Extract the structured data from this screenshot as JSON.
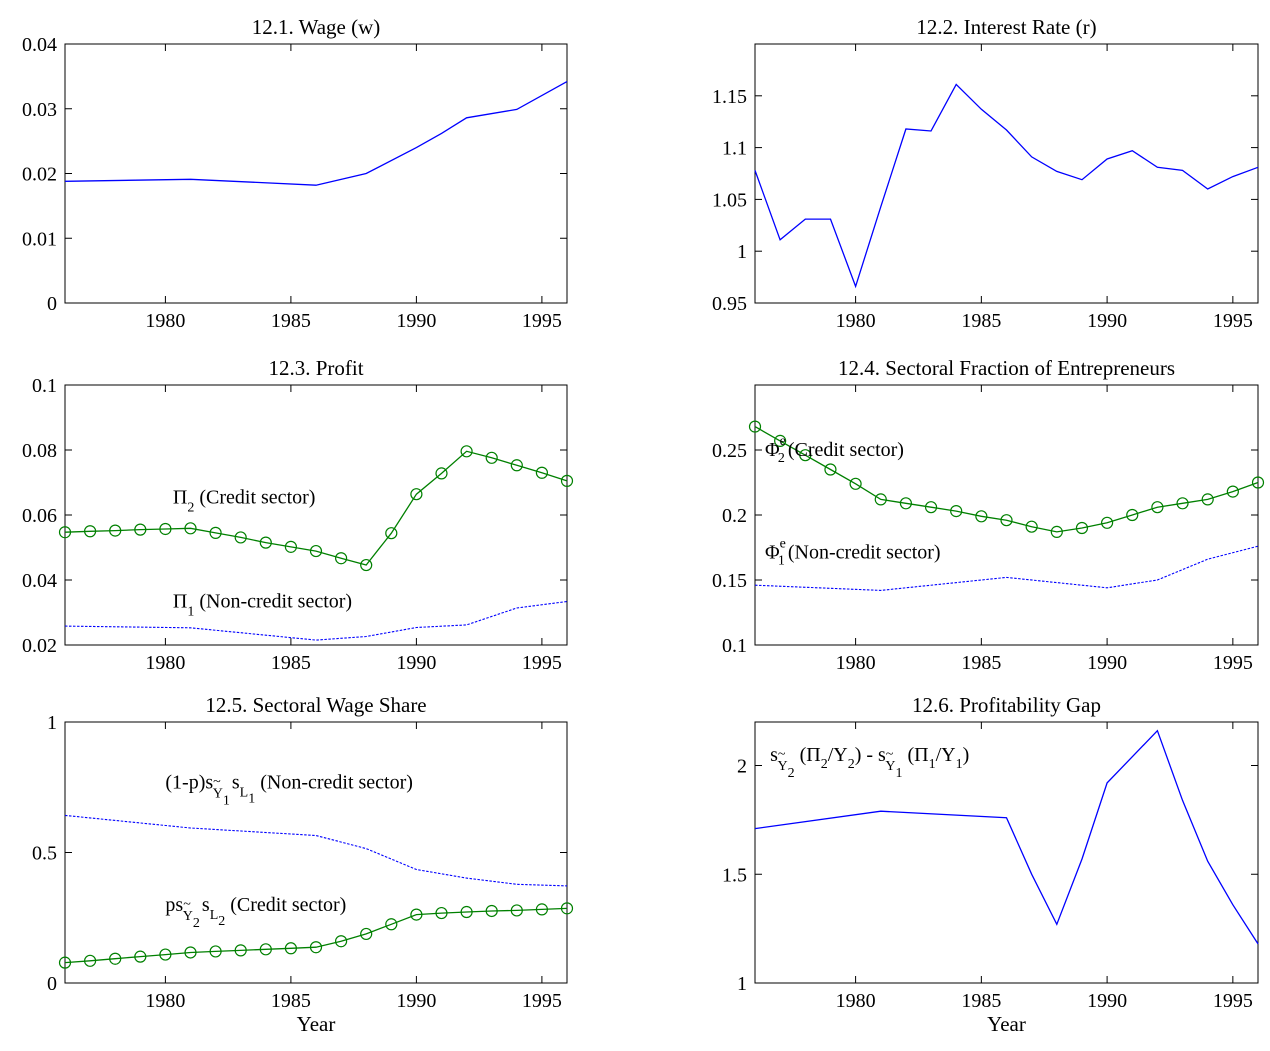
{
  "chart_data": [
    {
      "id": "p1",
      "type": "line",
      "title": "12.1. Wage (w)",
      "xlabel": "",
      "xlim": [
        1976,
        1996
      ],
      "ylim": [
        0,
        0.04
      ],
      "xticks": [
        1980,
        1985,
        1990,
        1995
      ],
      "xtick_labels": [
        "1980",
        "1985",
        "1990",
        "1995"
      ],
      "yticks": [
        0,
        0.01,
        0.02,
        0.03,
        0.04
      ],
      "ytick_labels": [
        "0",
        "0.01",
        "0.02",
        "0.03",
        "0.04"
      ],
      "grid": false,
      "series": [
        {
          "color": "#0000ff",
          "style": "solid",
          "marker": "none",
          "x": [
            1976,
            1981,
            1986,
            1988,
            1990,
            1991,
            1992,
            1994,
            1996
          ],
          "y": [
            0.0188,
            0.0191,
            0.0182,
            0.02,
            0.024,
            0.0262,
            0.0286,
            0.0299,
            0.0342
          ]
        }
      ],
      "annotations": []
    },
    {
      "id": "p2",
      "type": "line",
      "title": "12.2. Interest Rate (r)",
      "xlabel": "",
      "xlim": [
        1976,
        1996
      ],
      "ylim": [
        0.95,
        1.2
      ],
      "xticks": [
        1980,
        1985,
        1990,
        1995
      ],
      "xtick_labels": [
        "1980",
        "1985",
        "1990",
        "1995"
      ],
      "yticks": [
        0.95,
        1,
        1.05,
        1.1,
        1.15
      ],
      "ytick_labels": [
        "0.95",
        "1",
        "1.05",
        "1.1",
        "1.15"
      ],
      "grid": false,
      "series": [
        {
          "color": "#0000ff",
          "style": "solid",
          "marker": "none",
          "x": [
            1976,
            1977,
            1978,
            1979,
            1980,
            1981,
            1982,
            1983,
            1984,
            1985,
            1986,
            1987,
            1988,
            1989,
            1990,
            1991,
            1992,
            1993,
            1994,
            1995,
            1996
          ],
          "y": [
            1.078,
            1.011,
            1.031,
            1.031,
            0.966,
            1.043,
            1.118,
            1.116,
            1.161,
            1.137,
            1.117,
            1.091,
            1.077,
            1.069,
            1.089,
            1.097,
            1.081,
            1.078,
            1.06,
            1.072,
            1.081
          ]
        }
      ],
      "annotations": []
    },
    {
      "id": "p3",
      "type": "line",
      "title": "12.3. Profit",
      "xlabel": "",
      "xlim": [
        1976,
        1996
      ],
      "ylim": [
        0.02,
        0.1
      ],
      "xticks": [
        1980,
        1985,
        1990,
        1995
      ],
      "xtick_labels": [
        "1980",
        "1985",
        "1990",
        "1995"
      ],
      "yticks": [
        0.02,
        0.04,
        0.06,
        0.08,
        0.1
      ],
      "ytick_labels": [
        "0.02",
        "0.04",
        "0.06",
        "0.08",
        "0.1"
      ],
      "grid": false,
      "series": [
        {
          "color": "#008000",
          "style": "solid",
          "marker": "circle",
          "x": [
            1976,
            1977,
            1978,
            1979,
            1980,
            1981,
            1982,
            1983,
            1984,
            1985,
            1986,
            1987,
            1988,
            1989,
            1990,
            1991,
            1992,
            1993,
            1994,
            1995,
            1996
          ],
          "y": [
            0.0547,
            0.055,
            0.0552,
            0.0555,
            0.0557,
            0.0559,
            0.0545,
            0.0531,
            0.0515,
            0.0502,
            0.0489,
            0.0467,
            0.0446,
            0.0544,
            0.0664,
            0.0728,
            0.0796,
            0.0776,
            0.0753,
            0.073,
            0.0705
          ]
        },
        {
          "color": "#0000ff",
          "style": "dotted",
          "marker": "none",
          "x": [
            1976,
            1981,
            1986,
            1988,
            1990,
            1992,
            1994,
            1996
          ],
          "y": [
            0.0258,
            0.0253,
            0.0215,
            0.0226,
            0.0254,
            0.0262,
            0.0314,
            0.0334
          ]
        }
      ],
      "annotations": [
        {
          "main": "Π",
          "sub": "2",
          "rest": " (Credit sector)",
          "x": 1980.3,
          "y": 0.0635
        },
        {
          "main": "Π",
          "sub": "1",
          "rest": " (Non-credit sector)",
          "x": 1980.3,
          "y": 0.0315
        }
      ]
    },
    {
      "id": "p4",
      "type": "line",
      "title": "12.4. Sectoral Fraction of Entrepreneurs",
      "xlabel": "",
      "xlim": [
        1976,
        1996
      ],
      "ylim": [
        0.1,
        0.3
      ],
      "xticks": [
        1980,
        1985,
        1990,
        1995
      ],
      "xtick_labels": [
        "1980",
        "1985",
        "1990",
        "1995"
      ],
      "yticks": [
        0.1,
        0.15,
        0.2,
        0.25
      ],
      "ytick_labels": [
        "0.1",
        "0.15",
        "0.2",
        "0.25"
      ],
      "grid": false,
      "series": [
        {
          "color": "#008000",
          "style": "solid",
          "marker": "circle",
          "x": [
            1976,
            1977,
            1978,
            1979,
            1980,
            1981,
            1982,
            1983,
            1984,
            1985,
            1986,
            1987,
            1988,
            1989,
            1990,
            1991,
            1992,
            1993,
            1994,
            1995,
            1996
          ],
          "y": [
            0.268,
            0.257,
            0.246,
            0.235,
            0.224,
            0.212,
            0.209,
            0.206,
            0.203,
            0.199,
            0.196,
            0.191,
            0.187,
            0.19,
            0.194,
            0.2,
            0.206,
            0.209,
            0.212,
            0.218,
            0.225
          ]
        },
        {
          "color": "#0000ff",
          "style": "dotted",
          "marker": "none",
          "x": [
            1976,
            1981,
            1986,
            1988,
            1990,
            1992,
            1994,
            1996
          ],
          "y": [
            0.146,
            0.142,
            0.152,
            0.148,
            0.144,
            0.15,
            0.166,
            0.176
          ]
        }
      ],
      "annotations": [
        {
          "main": "Φ",
          "sub": "2",
          "sup": "e",
          "rest": "(Credit sector)",
          "x": 1976.4,
          "y": 0.2455
        },
        {
          "main": "Φ",
          "sub": "1",
          "sup": "e",
          "rest": "(Non-credit sector)",
          "x": 1976.4,
          "y": 0.1665
        }
      ]
    },
    {
      "id": "p5",
      "type": "line",
      "title": "12.5. Sectoral Wage Share",
      "xlabel": "Year",
      "xlim": [
        1976,
        1996
      ],
      "ylim": [
        0,
        1
      ],
      "xticks": [
        1980,
        1985,
        1990,
        1995
      ],
      "xtick_labels": [
        "1980",
        "1985",
        "1990",
        "1995"
      ],
      "yticks": [
        0,
        0.5,
        1
      ],
      "ytick_labels": [
        "0",
        "0.5",
        "1"
      ],
      "grid": false,
      "series": [
        {
          "color": "#0000ff",
          "style": "dotted",
          "marker": "none",
          "x": [
            1976,
            1981,
            1986,
            1988,
            1990,
            1992,
            1994,
            1996
          ],
          "y": [
            0.642,
            0.594,
            0.565,
            0.515,
            0.435,
            0.402,
            0.378,
            0.372
          ]
        },
        {
          "color": "#008000",
          "style": "solid",
          "marker": "circle",
          "x": [
            1976,
            1977,
            1978,
            1979,
            1980,
            1981,
            1982,
            1983,
            1984,
            1985,
            1986,
            1987,
            1988,
            1989,
            1990,
            1991,
            1992,
            1993,
            1994,
            1995,
            1996
          ],
          "y": [
            0.078,
            0.085,
            0.093,
            0.101,
            0.109,
            0.117,
            0.121,
            0.125,
            0.129,
            0.133,
            0.137,
            0.16,
            0.188,
            0.225,
            0.262,
            0.268,
            0.272,
            0.276,
            0.278,
            0.282,
            0.286
          ]
        }
      ],
      "annotations": [
        {
          "kind": "noncredit_share",
          "label": "(1-p)s",
          "tilde": "~",
          "sub1": "Y",
          "subsub1": "1",
          "mid": "s",
          "sub2": "L",
          "subsub2": "1",
          "rest": " (Non-credit sector)",
          "x": 1980.0,
          "y": 0.745
        },
        {
          "kind": "credit_share",
          "label": "ps",
          "tilde": "~",
          "sub1": "Y",
          "subsub1": "2",
          "mid": "s",
          "sub2": "L",
          "subsub2": "2",
          "rest": "  (Credit sector)",
          "x": 1980.0,
          "y": 0.275
        }
      ]
    },
    {
      "id": "p6",
      "type": "line",
      "title": "12.6. Profitability Gap",
      "xlabel": "Year",
      "xlim": [
        1976,
        1996
      ],
      "ylim": [
        1,
        2.2
      ],
      "xticks": [
        1980,
        1985,
        1990,
        1995
      ],
      "xtick_labels": [
        "1980",
        "1985",
        "1990",
        "1995"
      ],
      "yticks": [
        1,
        1.5,
        2
      ],
      "ytick_labels": [
        "1",
        "1.5",
        "2"
      ],
      "grid": false,
      "series": [
        {
          "color": "#0000ff",
          "style": "solid",
          "marker": "none",
          "x": [
            1976,
            1981,
            1986,
            1987,
            1988,
            1989,
            1990,
            1992,
            1993,
            1994,
            1995,
            1996
          ],
          "y": [
            1.71,
            1.79,
            1.76,
            1.5,
            1.27,
            1.57,
            1.92,
            2.16,
            1.84,
            1.56,
            1.36,
            1.18
          ]
        }
      ],
      "annotations": [
        {
          "kind": "gap",
          "s": "s",
          "tilde": "~",
          "sub1": "Y",
          "subsub1": "2",
          "part1": " (Π",
          "p1sub": "2",
          "part2": "/Y",
          "p2sub": "2",
          "part3": ") - s",
          "sub3": "Y",
          "subsub3": "1",
          "part4": " (Π",
          "p4sub": "1",
          "part5": "/Y",
          "p5sub": "1",
          "part6": ")",
          "x": 1976.6,
          "y": 2.02
        }
      ]
    }
  ]
}
